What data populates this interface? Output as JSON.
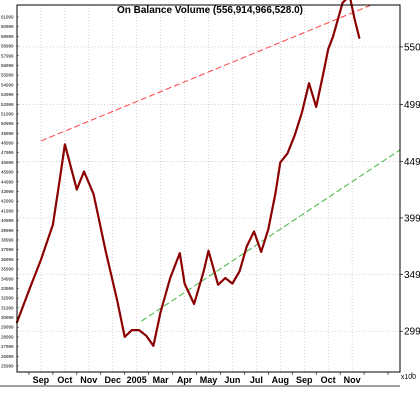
{
  "chart_data": {
    "type": "line",
    "title": "On Balance Volume (556,914,966,528.0)",
    "x_tick_labels": [
      "Sep",
      "Oct",
      "Nov",
      "Dec",
      "2005",
      "Mar",
      "Apr",
      "May",
      "Jun",
      "Jul",
      "Aug",
      "Sep",
      "Oct",
      "Nov"
    ],
    "y_right_tick_labels": [
      "550",
      "499",
      "449",
      "399",
      "349",
      "299"
    ],
    "y_right_tick_values": [
      550,
      499,
      449,
      399,
      349,
      299
    ],
    "y_left_tick_labels": [
      "61999",
      "60999",
      "59999",
      "58999",
      "57999",
      "56999",
      "55999",
      "54999",
      "53999",
      "52999",
      "51999",
      "50999",
      "49999",
      "48999",
      "47999",
      "46999",
      "45999",
      "44999",
      "43999",
      "42999",
      "41999",
      "40999",
      "39999",
      "38999",
      "37999",
      "36999",
      "35999",
      "34999",
      "33999",
      "32999",
      "31999",
      "30999",
      "29999",
      "28999",
      "27999",
      "26999",
      "25999"
    ],
    "y_unit_label": "x100",
    "ylim": [
      263,
      587
    ],
    "xlim": [
      0,
      16
    ],
    "grid": true,
    "series": [
      {
        "color": "#8b0000",
        "x": [
          0,
          0.5,
          1.0,
          1.5,
          1.8,
          2.0,
          2.5,
          2.8,
          3.2,
          3.7,
          4.2,
          4.5,
          4.8,
          5.1,
          5.4,
          5.7,
          6.0,
          6.4,
          6.8,
          7.0,
          7.4,
          7.8,
          8.0,
          8.4,
          8.7,
          9.0,
          9.3,
          9.6,
          9.9,
          10.2,
          10.5,
          10.8,
          11.0,
          11.3,
          11.6,
          11.9,
          12.2,
          12.5,
          12.8,
          13.0,
          13.2,
          13.6,
          13.9,
          14.1,
          14.3
        ],
        "y": [
          307,
          335,
          362,
          393,
          435,
          464,
          424,
          440,
          420,
          370,
          325,
          294,
          300,
          300,
          295,
          286,
          316,
          346,
          368,
          341,
          323,
          352,
          370,
          340,
          346,
          341,
          352,
          374,
          387,
          369,
          389,
          421,
          448,
          456,
          472,
          492,
          518,
          497,
          527,
          548,
          559,
          589,
          595,
          575,
          558
        ]
      }
    ],
    "trendlines": [
      {
        "color": "#ff4040",
        "style": "dashed",
        "x": [
          1.0,
          14.8
        ],
        "y": [
          467,
          587
        ]
      },
      {
        "color": "#3cb83c",
        "style": "dashed",
        "x": [
          5.2,
          16.0
        ],
        "y": [
          308,
          459
        ]
      }
    ]
  }
}
